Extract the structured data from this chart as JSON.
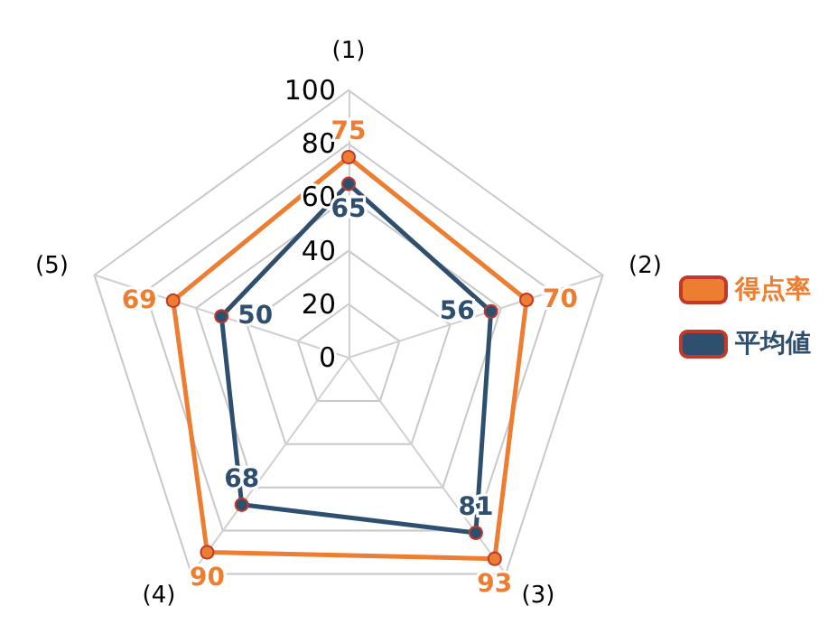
{
  "chart_data": {
    "type": "radar",
    "categories": [
      "(1)",
      "(2)",
      "(3)",
      "(4)",
      "(5)"
    ],
    "series": [
      {
        "name": "得点率",
        "color": "#ed7d31",
        "values": [
          75,
          70,
          93,
          90,
          69
        ]
      },
      {
        "name": "平均値",
        "color": "#2f4f6f",
        "values": [
          65,
          56,
          81,
          68,
          50
        ]
      }
    ],
    "ylim": [
      0,
      100
    ],
    "yticks": [
      0,
      20,
      40,
      60,
      80,
      100
    ],
    "grid": true,
    "legend": "right",
    "marker": "circle",
    "data_labels": true
  }
}
